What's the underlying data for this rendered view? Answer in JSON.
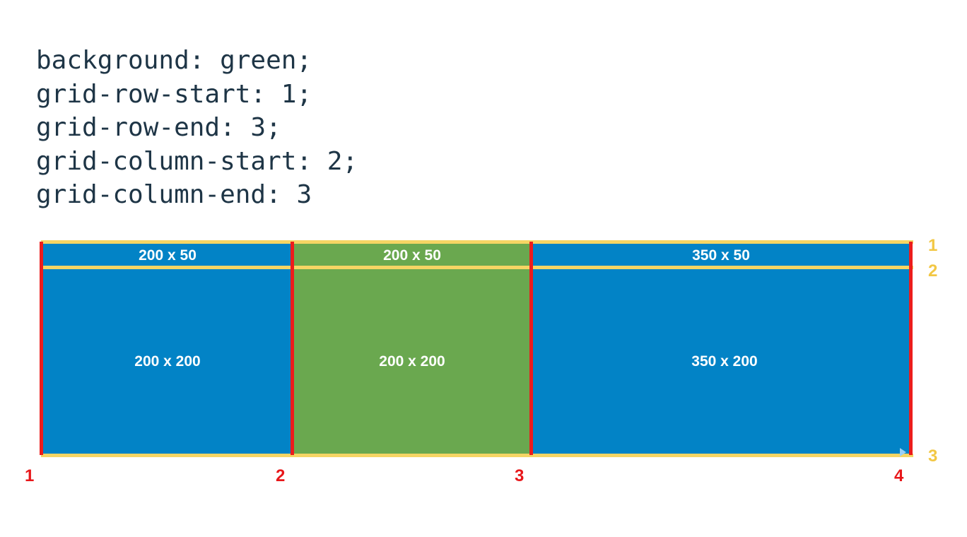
{
  "code": {
    "lines": [
      "background: green;",
      "grid-row-start: 1;",
      "grid-row-end: 3;",
      "grid-column-start: 2;",
      "grid-column-end: 3"
    ]
  },
  "grid": {
    "cells": {
      "r1c1": "200 x 50",
      "r1c2": "200 x 50",
      "r1c3": "350 x 50",
      "r2c1": "200 x 200",
      "r2c2": "200 x 200",
      "r2c3": "350 x 200"
    },
    "column_line_numbers": [
      "1",
      "2",
      "3",
      "4"
    ],
    "row_line_numbers": [
      "1",
      "2",
      "3"
    ]
  },
  "colors": {
    "cell_blue": "#0283c6",
    "cell_green": "#6aa84f",
    "column_lines": "#ec1c1c",
    "row_lines": "#f5d564",
    "code_text": "#1e3546"
  }
}
